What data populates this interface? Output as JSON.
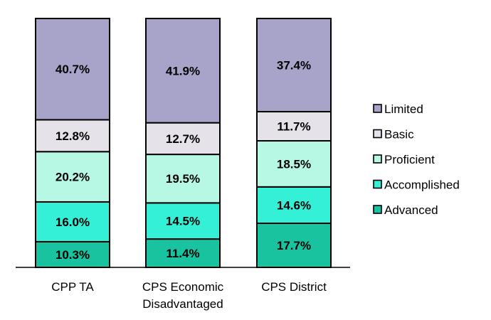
{
  "chart_data": {
    "type": "bar",
    "stacked": true,
    "title": "",
    "xlabel": "",
    "ylabel": "",
    "ylim": [
      0,
      100
    ],
    "grid": false,
    "legend_position": "right",
    "categories": [
      "CPP TA",
      "CPS Economic Disadvantaged",
      "CPS District"
    ],
    "category_lines": [
      [
        "CPP TA"
      ],
      [
        "CPS Economic",
        "Disadvantaged"
      ],
      [
        "CPS District"
      ]
    ],
    "series": [
      {
        "name": "Advanced",
        "color": "#19c3a0",
        "values": [
          10.3,
          11.4,
          17.7
        ],
        "labels": [
          "10.3%",
          "11.4%",
          "17.7%"
        ]
      },
      {
        "name": "Accomplished",
        "color": "#33f0d6",
        "values": [
          16.0,
          14.5,
          14.6
        ],
        "labels": [
          "16.0%",
          "14.5%",
          "14.6%"
        ]
      },
      {
        "name": "Proficient",
        "color": "#b6f8e4",
        "values": [
          20.2,
          19.5,
          18.5
        ],
        "labels": [
          "20.2%",
          "19.5%",
          "18.5%"
        ]
      },
      {
        "name": "Basic",
        "color": "#e5e2ea",
        "values": [
          12.8,
          12.7,
          11.7
        ],
        "labels": [
          "12.8%",
          "12.7%",
          "11.7%"
        ]
      },
      {
        "name": "Limited",
        "color": "#a8a3c8",
        "values": [
          40.7,
          41.9,
          37.4
        ],
        "labels": [
          "40.7%",
          "41.9%",
          "37.4%"
        ]
      }
    ],
    "legend_order": [
      "Limited",
      "Basic",
      "Proficient",
      "Accomplished",
      "Advanced"
    ]
  }
}
